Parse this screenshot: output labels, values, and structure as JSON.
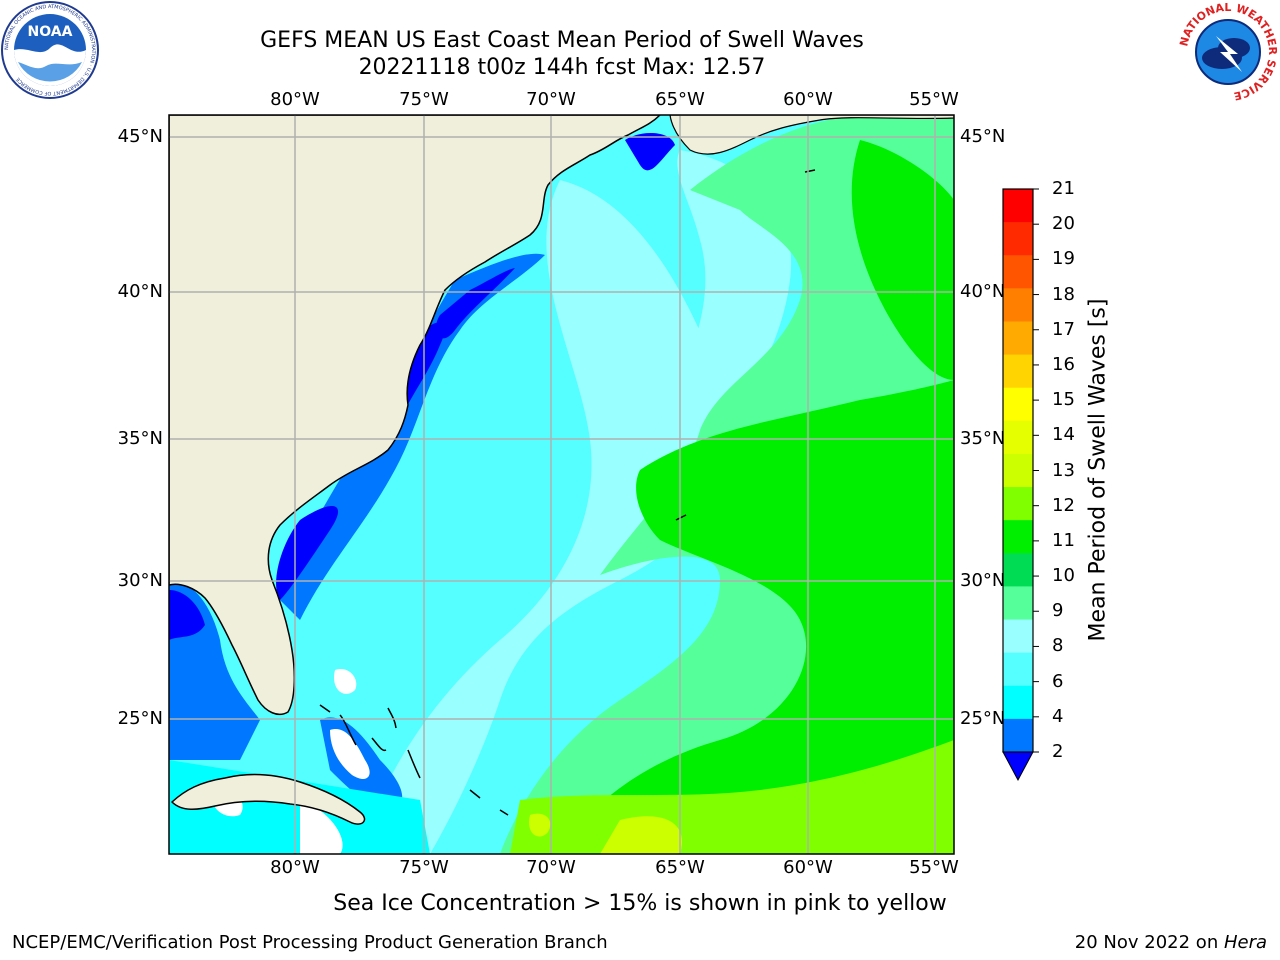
{
  "header": {
    "title_line1": "GEFS MEAN US East Coast Mean Period of Swell Waves",
    "title_line2": "20221118 t00z 144h fcst   Max: 12.57"
  },
  "logos": {
    "noaa_text": "NOAA",
    "noaa_ring_text": "NATIONAL OCEANIC AND ATMOSPHERIC ADMINISTRATION · U.S. DEPARTMENT OF COMMERCE",
    "nws_ring_text": "NATIONAL WEATHER SERVICE"
  },
  "map": {
    "lon_labels": [
      "80°W",
      "75°W",
      "70°W",
      "65°W",
      "60°W",
      "55°W"
    ],
    "lat_labels": [
      "45°N",
      "40°N",
      "35°N",
      "30°N",
      "25°N"
    ],
    "land_color": "#efefdc",
    "grid_color": "#b0b0b0"
  },
  "colorbar": {
    "label": "Mean Period of Swell Waves [s]",
    "ticks": [
      "21",
      "20",
      "19",
      "18",
      "17",
      "16",
      "15",
      "14",
      "13",
      "12",
      "11",
      "10",
      "9",
      "8",
      "6",
      "4",
      "2"
    ],
    "colors": [
      "#ff0000",
      "#ff2a00",
      "#ff5500",
      "#ff8000",
      "#ffaa00",
      "#ffd400",
      "#ffff00",
      "#e6ff00",
      "#ccff00",
      "#80ff00",
      "#00ee00",
      "#00dd55",
      "#55ff99",
      "#99ffff",
      "#55ffff",
      "#00ffff",
      "#0077ff"
    ],
    "extend_color": "#0000ff"
  },
  "footer": {
    "note": "Sea Ice Concentration > 15% is shown in pink to yellow",
    "left": "NCEP/EMC/Verification Post Processing Product Generation Branch",
    "right_date": "20 Nov 2022 on ",
    "right_host": "Hera"
  }
}
